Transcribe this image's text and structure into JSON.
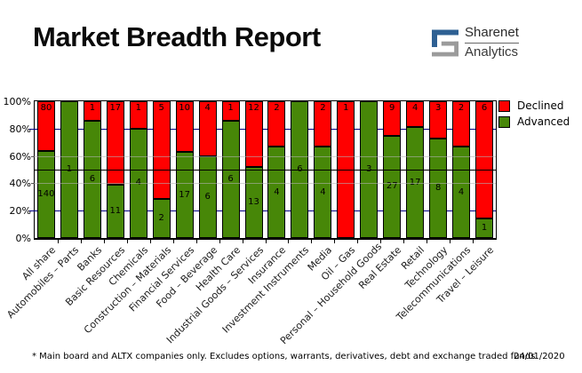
{
  "header": {
    "title": "Market Breadth Report",
    "logo": {
      "line1": "Sharenet",
      "line2": "Analytics",
      "blue": "#2e6093",
      "gray": "#9b9b9b"
    }
  },
  "legend": {
    "items": [
      {
        "label": "Declined",
        "color": "#ff0000"
      },
      {
        "label": "Advanced",
        "color": "#478708"
      }
    ]
  },
  "footer": {
    "note": "* Main board and ALTX companies only. Excludes options, warrants, derivatives, debt and exchange traded funds",
    "date": "24/01/2020"
  },
  "chart_data": {
    "type": "bar",
    "stacked": true,
    "normalized": "percent",
    "title": "Market Breadth Report",
    "xlabel": "",
    "ylabel": "",
    "ylim": [
      0,
      100
    ],
    "y_ticks": [
      "0%",
      "20%",
      "40%",
      "60%",
      "80%",
      "100%"
    ],
    "legend_position": "top-right",
    "grid": {
      "navy_lines_pct": [
        20,
        80
      ],
      "gray_lines_pct": [
        40,
        60
      ],
      "black_midline_pct": 50
    },
    "categories": [
      "All share",
      "Automobiles – Parts",
      "Banks",
      "Basic Resources",
      "Chemicals",
      "Construction – Materials",
      "Financial Services",
      "Food – Beverage",
      "Health Care",
      "Industrial Goods – Services",
      "Insurance",
      "Investment Instruments",
      "Media",
      "Oil – Gas",
      "Personal – Household Goods",
      "Real Estate",
      "Retail",
      "Technology",
      "Telecommunications",
      "Travel – Leisure"
    ],
    "series": [
      {
        "name": "Advanced",
        "color": "#478708",
        "values": [
          140,
          1,
          6,
          11,
          4,
          2,
          17,
          6,
          6,
          13,
          4,
          6,
          4,
          0,
          3,
          27,
          17,
          8,
          4,
          1
        ]
      },
      {
        "name": "Declined",
        "color": "#ff0000",
        "values": [
          80,
          0,
          1,
          17,
          1,
          5,
          10,
          4,
          1,
          12,
          2,
          0,
          2,
          1,
          0,
          9,
          4,
          3,
          2,
          6
        ]
      }
    ]
  }
}
